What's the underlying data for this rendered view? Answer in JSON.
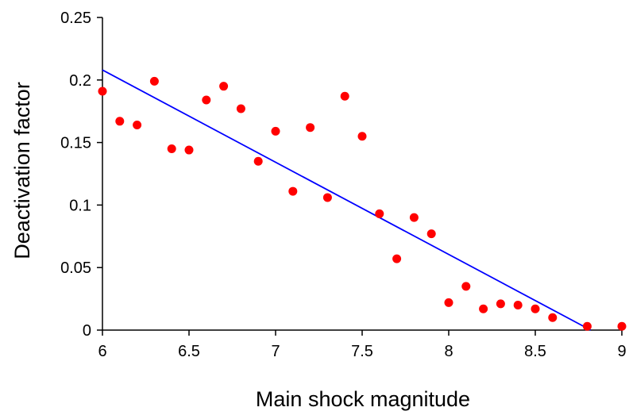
{
  "chart_data": {
    "type": "scatter",
    "title": "",
    "xlabel": "Main shock magnitude",
    "ylabel": "Deactivation factor",
    "xlim": [
      6,
      9
    ],
    "ylim": [
      0,
      0.25
    ],
    "x_ticks": [
      6,
      6.5,
      7,
      7.5,
      8,
      8.5,
      9
    ],
    "x_tick_labels": [
      "6",
      "6.5",
      "7",
      "7.5",
      "8",
      "8.5",
      "9"
    ],
    "y_ticks": [
      0,
      0.05,
      0.1,
      0.15,
      0.2,
      0.25
    ],
    "y_tick_labels": [
      "0",
      "0.05",
      "0.1",
      "0.15",
      "0.2",
      "0.25"
    ],
    "grid": false,
    "legend": "none",
    "points": {
      "x": [
        6.0,
        6.1,
        6.2,
        6.3,
        6.4,
        6.5,
        6.6,
        6.7,
        6.8,
        6.9,
        7.0,
        7.1,
        7.2,
        7.3,
        7.4,
        7.5,
        7.6,
        7.7,
        7.8,
        7.9,
        8.0,
        8.1,
        8.2,
        8.3,
        8.4,
        8.5,
        8.6,
        8.8,
        9.0
      ],
      "y": [
        0.191,
        0.167,
        0.164,
        0.199,
        0.145,
        0.144,
        0.184,
        0.195,
        0.177,
        0.135,
        0.159,
        0.111,
        0.162,
        0.106,
        0.187,
        0.155,
        0.093,
        0.057,
        0.09,
        0.077,
        0.022,
        0.035,
        0.017,
        0.021,
        0.02,
        0.017,
        0.01,
        0.003,
        0.003
      ],
      "color": "#ff0000"
    },
    "trend_line": {
      "x": [
        6.0,
        8.82
      ],
      "y": [
        0.208,
        0.0
      ],
      "color": "#0000ff"
    }
  }
}
